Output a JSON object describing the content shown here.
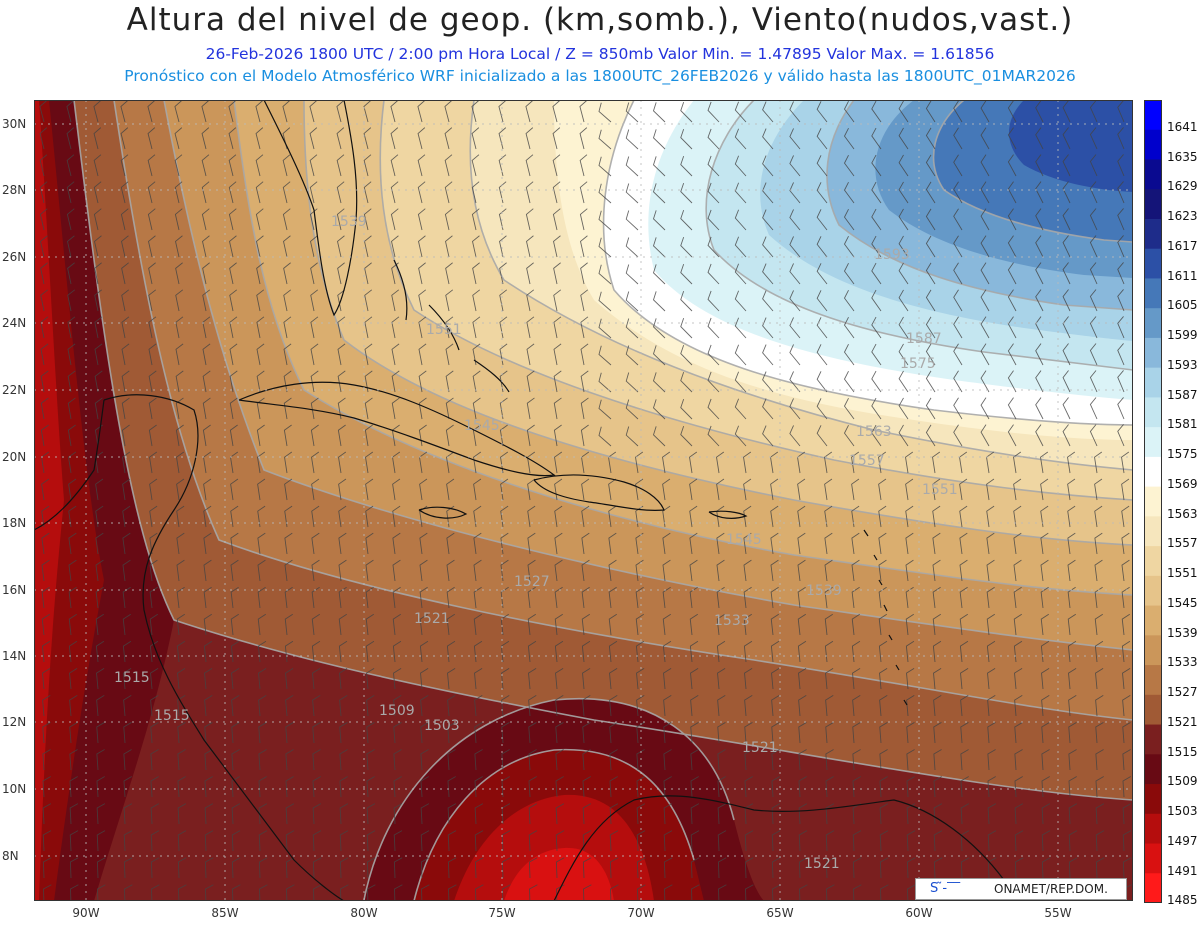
{
  "header": {
    "title": "Altura del nivel de geop. (km,somb.), Viento(nudos,vast.)",
    "subtitle1": "26-Feb-2026  1800 UTC / 2:00 pm Hora Local / Z = 850mb     Valor Min. = 1.47895  Valor Max. = 1.61856",
    "subtitle2": "Pronóstico con el Modelo Atmosférico WRF inicializado a las 1800UTC_26FEB2026 y válido hasta las  1800UTC_01MAR2026"
  },
  "axes": {
    "lat_labels": [
      "30N",
      "28N",
      "26N",
      "24N",
      "22N",
      "20N",
      "18N",
      "16N",
      "14N",
      "12N",
      "10N",
      "8N"
    ],
    "lon_labels": [
      "90W",
      "85W",
      "80W",
      "75W",
      "70W",
      "65W",
      "60W",
      "55W"
    ]
  },
  "colorbar": {
    "labels": [
      "1641",
      "1635",
      "1629",
      "1623",
      "1617",
      "1611",
      "1605",
      "1599",
      "1593",
      "1587",
      "1581",
      "1575",
      "1569",
      "1563",
      "1557",
      "1551",
      "1545",
      "1539",
      "1533",
      "1527",
      "1521",
      "1515",
      "1509",
      "1503",
      "1497",
      "1491",
      "1485"
    ],
    "colors": [
      "#0000ff",
      "#0000cc",
      "#0a0a90",
      "#141478",
      "#1e2c8a",
      "#2c50a6",
      "#4578b8",
      "#6599c8",
      "#89b8db",
      "#a9d3e8",
      "#c4e6f0",
      "#dbf3f7",
      "#ffffff",
      "#fdf3d2",
      "#f6e6bd",
      "#efd6a2",
      "#e6c48a",
      "#daae6f",
      "#cb965a",
      "#b77846",
      "#a05a35",
      "#7a1f1f",
      "#680a14",
      "#8a0a0a",
      "#b50d0d",
      "#d91111",
      "#ff1a1a"
    ]
  },
  "contour_labels": [
    "1539",
    "1551",
    "1593",
    "1587",
    "1575",
    "1563",
    "1557",
    "1551",
    "1545",
    "1539",
    "1515",
    "1527",
    "1533",
    "1521",
    "1545",
    "1515",
    "1509",
    "1503",
    "1521",
    "1521"
  ],
  "badge": {
    "logo_text": "S ̃-‾‾",
    "org": "ONAMET/REP.DOM."
  }
}
